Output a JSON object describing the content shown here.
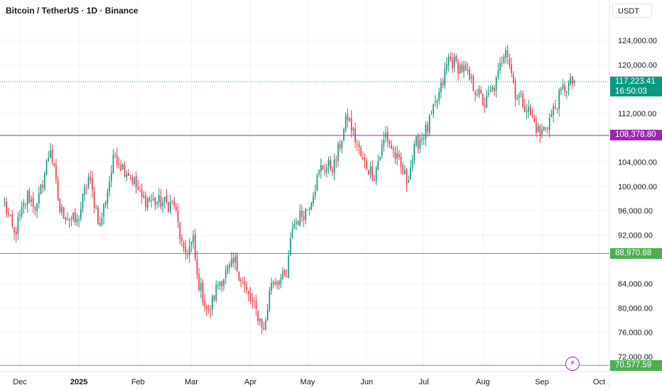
{
  "header": {
    "title": "Bitcoin / TetherUS · 1D · Binance",
    "currency_button": "USDT"
  },
  "colors": {
    "up": "#089981",
    "down": "#f23645",
    "current_line": "#089981",
    "purple_line": "#9c27b0",
    "green_line": "#4caf50",
    "grid": "#f0f3fa"
  },
  "icons": {
    "alert": "lightning-bolt-icon"
  },
  "chart_data": {
    "type": "candlestick",
    "title": "Bitcoin / TetherUS · 1D · Binance",
    "y_axis_unit": "USDT",
    "y_ticks": [
      "124,000.00",
      "120,000.00",
      "112,000.00",
      "104,000.00",
      "100,000.00",
      "96,000.00",
      "92,000.00",
      "84,000.00",
      "80,000.00",
      "76,000.00",
      "72,000.00"
    ],
    "x_ticks": [
      {
        "label": "Dec",
        "bold": false,
        "date": "2024-12-01"
      },
      {
        "label": "2025",
        "bold": true,
        "date": "2025-01-01"
      },
      {
        "label": "Feb",
        "bold": false,
        "date": "2025-02-01"
      },
      {
        "label": "Mar",
        "bold": false,
        "date": "2025-03-01"
      },
      {
        "label": "Apr",
        "bold": false,
        "date": "2025-04-01"
      },
      {
        "label": "May",
        "bold": false,
        "date": "2025-05-01"
      },
      {
        "label": "Jun",
        "bold": false,
        "date": "2025-06-01"
      },
      {
        "label": "Jul",
        "bold": false,
        "date": "2025-07-01"
      },
      {
        "label": "Aug",
        "bold": false,
        "date": "2025-08-01"
      },
      {
        "label": "Sep",
        "bold": false,
        "date": "2025-09-01"
      },
      {
        "label": "Oct",
        "bold": false,
        "date": "2025-10-01"
      }
    ],
    "x_range": [
      "2024-11-23",
      "2025-10-15"
    ],
    "y_range": [
      70000,
      126000
    ],
    "grid": true,
    "current_price": {
      "value": 117223.41,
      "label": "117,223.41",
      "countdown": "16:50:03"
    },
    "horizontal_lines": [
      {
        "value": 108378.8,
        "label": "108,378.80",
        "color": "#9c27b0"
      },
      {
        "value": 88970.88,
        "label": "88,970.88",
        "color": "#4caf50"
      },
      {
        "value": 70577.59,
        "label": "70,577.59",
        "color": "#4caf50"
      }
    ],
    "anchors": [
      [
        "2024-11-23",
        97000
      ],
      [
        "2024-11-28",
        92000
      ],
      [
        "2024-12-05",
        98500
      ],
      [
        "2024-12-10",
        96500
      ],
      [
        "2024-12-17",
        106500
      ],
      [
        "2024-12-22",
        96000
      ],
      [
        "2024-12-31",
        94000
      ],
      [
        "2025-01-06",
        101500
      ],
      [
        "2025-01-12",
        93500
      ],
      [
        "2025-01-20",
        105500
      ],
      [
        "2025-01-23",
        103500
      ],
      [
        "2025-01-28",
        102000
      ],
      [
        "2025-02-03",
        98000
      ],
      [
        "2025-02-10",
        97500
      ],
      [
        "2025-02-20",
        97000
      ],
      [
        "2025-02-25",
        88500
      ],
      [
        "2025-03-02",
        91000
      ],
      [
        "2025-03-04",
        85000
      ],
      [
        "2025-03-10",
        79000
      ],
      [
        "2025-03-15",
        84000
      ],
      [
        "2025-03-24",
        87500
      ],
      [
        "2025-03-30",
        82500
      ],
      [
        "2025-04-07",
        77500
      ],
      [
        "2025-04-08",
        76000
      ],
      [
        "2025-04-12",
        84500
      ],
      [
        "2025-04-20",
        85000
      ],
      [
        "2025-04-23",
        93500
      ],
      [
        "2025-05-01",
        96500
      ],
      [
        "2025-05-08",
        103000
      ],
      [
        "2025-05-15",
        103500
      ],
      [
        "2025-05-22",
        111500
      ],
      [
        "2025-05-30",
        104000
      ],
      [
        "2025-06-05",
        102000
      ],
      [
        "2025-06-11",
        108500
      ],
      [
        "2025-06-16",
        105000
      ],
      [
        "2025-06-22",
        101000
      ],
      [
        "2025-06-27",
        107000
      ],
      [
        "2025-07-03",
        109500
      ],
      [
        "2025-07-10",
        116000
      ],
      [
        "2025-07-14",
        121000
      ],
      [
        "2025-07-22",
        119000
      ],
      [
        "2025-08-02",
        113500
      ],
      [
        "2025-08-08",
        117000
      ],
      [
        "2025-08-13",
        123500
      ],
      [
        "2025-08-18",
        115500
      ],
      [
        "2025-08-24",
        113000
      ],
      [
        "2025-08-31",
        108500
      ],
      [
        "2025-09-05",
        111000
      ],
      [
        "2025-09-12",
        116000
      ],
      [
        "2025-09-18",
        117223
      ]
    ]
  }
}
